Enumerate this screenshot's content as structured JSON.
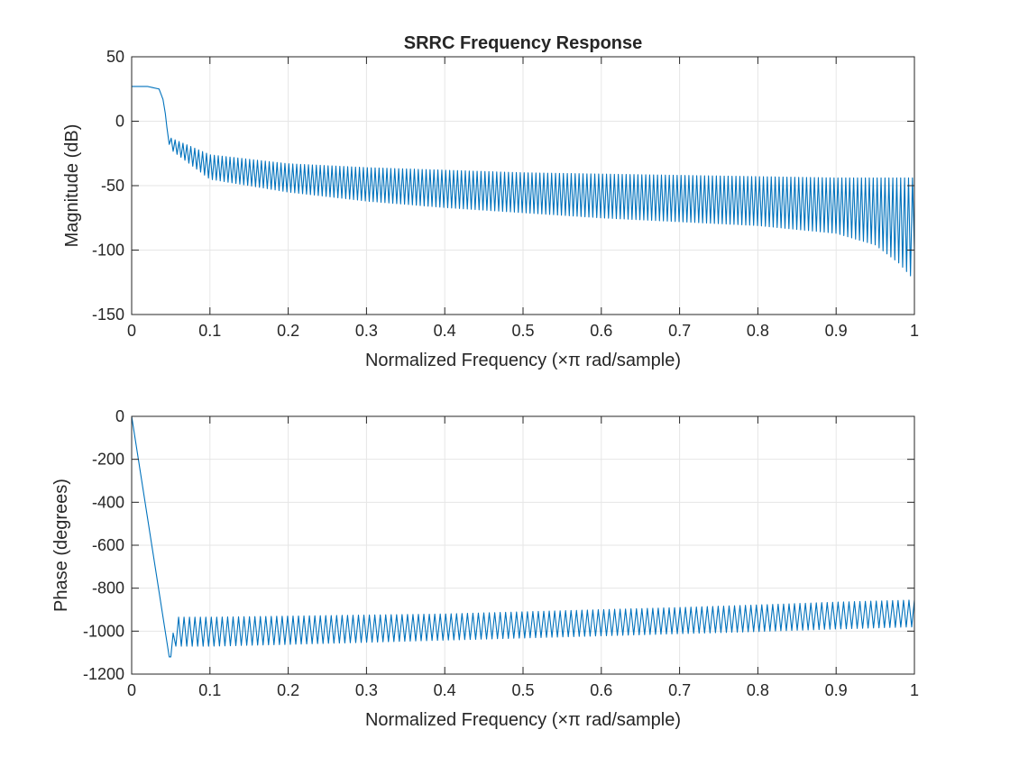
{
  "chart_data": [
    {
      "type": "line",
      "title": "SRRC Frequency Response",
      "xlabel": "Normalized Frequency  (×π rad/sample)",
      "ylabel": "Magnitude (dB)",
      "xlim": [
        0,
        1
      ],
      "ylim": [
        -150,
        50
      ],
      "xticks": [
        0,
        0.1,
        0.2,
        0.3,
        0.4,
        0.5,
        0.6,
        0.7,
        0.8,
        0.9,
        1
      ],
      "xtick_labels": [
        "0",
        "0.1",
        "0.2",
        "0.3",
        "0.4",
        "0.5",
        "0.6",
        "0.7",
        "0.8",
        "0.9",
        "1"
      ],
      "yticks": [
        50,
        0,
        -50,
        -100,
        -150
      ],
      "ytick_labels": [
        "50",
        "0",
        "-50",
        "-100",
        "-150"
      ],
      "grid": true,
      "color": "#0072BD",
      "series": [
        {
          "x": [
            0,
            0.02,
            0.035,
            0.04,
            0.043,
            0.046,
            0.048,
            0.05,
            0.1,
            0.2,
            0.3,
            0.4,
            0.5,
            0.6,
            0.7,
            0.8,
            0.9,
            0.95,
            0.98,
            0.995,
            1
          ],
          "y_peak": [
            27,
            27,
            25,
            17,
            6,
            -10,
            -15,
            -13,
            -26,
            -33,
            -36,
            -38,
            -40,
            -41,
            -42,
            -43,
            -44,
            -44,
            -44,
            -44,
            -44
          ],
          "y_trough": [
            27,
            27,
            25,
            17,
            6,
            -10,
            -18,
            -22,
            -45,
            -55,
            -62,
            -67,
            -71,
            -75,
            -78,
            -81,
            -87,
            -96,
            -110,
            -120,
            -100
          ]
        }
      ]
    },
    {
      "type": "line",
      "title": "",
      "xlabel": "Normalized Frequency  (×π rad/sample)",
      "ylabel": "Phase (degrees)",
      "xlim": [
        0,
        1
      ],
      "ylim": [
        -1200,
        0
      ],
      "xticks": [
        0,
        0.1,
        0.2,
        0.3,
        0.4,
        0.5,
        0.6,
        0.7,
        0.8,
        0.9,
        1
      ],
      "xtick_labels": [
        "0",
        "0.1",
        "0.2",
        "0.3",
        "0.4",
        "0.5",
        "0.6",
        "0.7",
        "0.8",
        "0.9",
        "1"
      ],
      "yticks": [
        0,
        -200,
        -400,
        -600,
        -800,
        -1000,
        -1200
      ],
      "ytick_labels": [
        "0",
        "-200",
        "-400",
        "-600",
        "-800",
        "-1000",
        "-1200"
      ],
      "grid": true,
      "color": "#0072BD",
      "series": [
        {
          "x": [
            0,
            0.048,
            0.05,
            0.055,
            0.1,
            0.2,
            0.3,
            0.4,
            0.5,
            0.6,
            0.7,
            0.8,
            0.9,
            1
          ],
          "y_upper": [
            0,
            -1120,
            -1120,
            -935,
            -935,
            -930,
            -925,
            -920,
            -910,
            -900,
            -890,
            -878,
            -865,
            -855
          ],
          "y_lower": [
            0,
            -1120,
            -1120,
            -1070,
            -1070,
            -1062,
            -1052,
            -1042,
            -1032,
            -1022,
            -1012,
            -1002,
            -990,
            -980
          ]
        }
      ]
    }
  ]
}
